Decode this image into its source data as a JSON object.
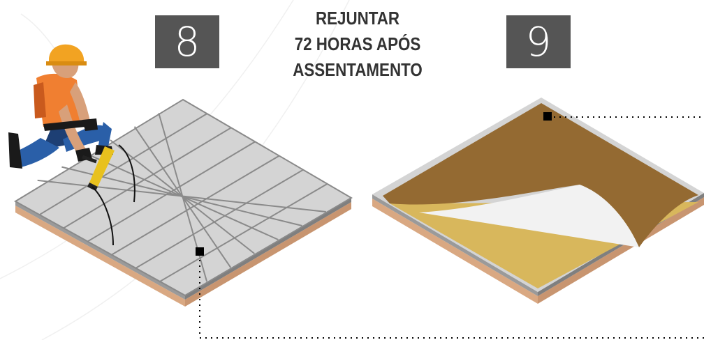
{
  "steps": {
    "left": {
      "number": "8"
    },
    "right": {
      "number": "9"
    }
  },
  "heading": {
    "lines": [
      "REJUNTAR",
      "72 HORAS APÓS",
      "ASSENTAMENTO"
    ]
  },
  "colors": {
    "number_box": "#555555",
    "heading_text": "#333333",
    "tile": "#d4d4d4",
    "grout_line": "#8a8a8a",
    "slab_wood": "#d9a882",
    "cover_brown": "#946a32",
    "cover_yellow": "#d8b75c",
    "worker_shirt": "#f07f31",
    "worker_helmet": "#f2a322",
    "worker_pants": "#2a5fa8",
    "squeegee": "#e8c11e"
  },
  "icons": [
    "construction-worker-icon",
    "squeegee-icon"
  ]
}
